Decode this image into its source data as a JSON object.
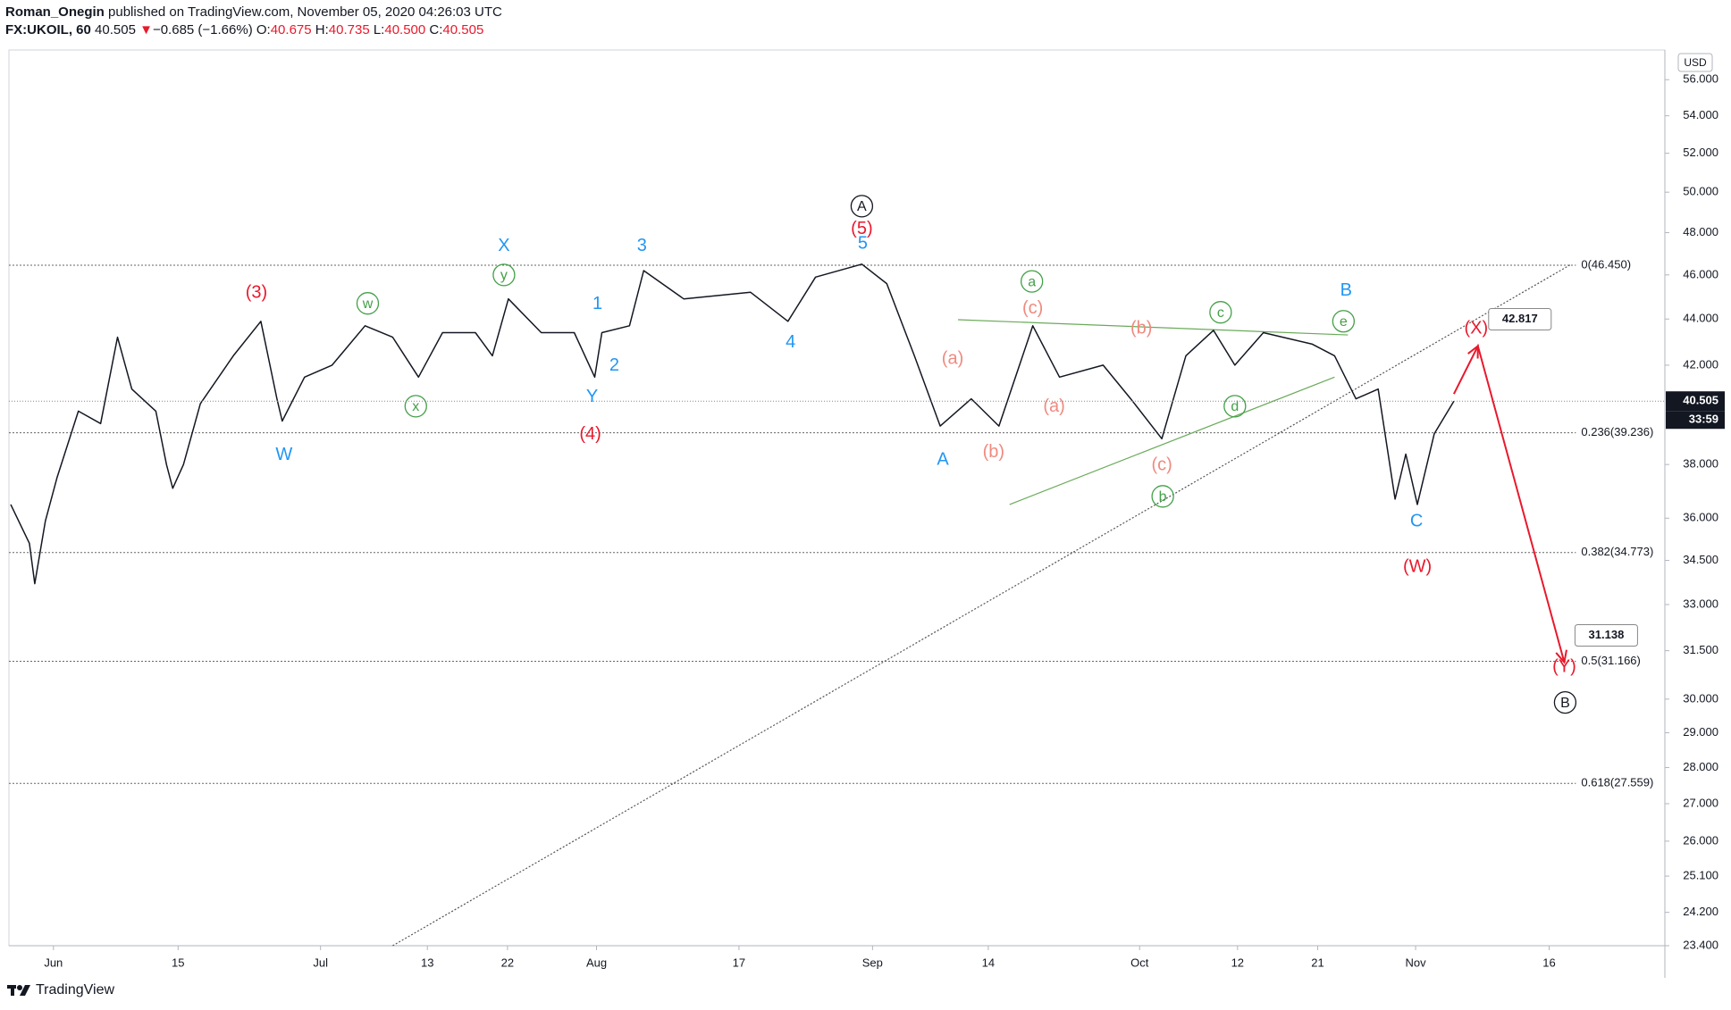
{
  "header": {
    "author": "Roman_Onegin",
    "published": "published on TradingView.com, November 05, 2020 04:26:03 UTC",
    "symbol": "FX:UKOIL, 60",
    "last": "40.505",
    "arrow": "▼",
    "change": "−0.685 (−1.66%)",
    "o_label": "O:",
    "o": "40.675",
    "h_label": "H:",
    "h": "40.735",
    "l_label": "L:",
    "l": "40.500",
    "c_label": "C:",
    "c": "40.505"
  },
  "footer": {
    "brand": "TradingView"
  },
  "chart_data": {
    "type": "line",
    "currency": "USD",
    "log_scale": true,
    "color": "#131722",
    "x": [
      -4.8,
      -2.7,
      -2.1,
      -0.9,
      0.4,
      2.8,
      5.3,
      7.2,
      8.8,
      11.5,
      12.7,
      13.4,
      14.6,
      16.5,
      20.2,
      23.3,
      25.1,
      25.7,
      28.2,
      31.3,
      35.0,
      38.1,
      41.0,
      43.7,
      47.4,
      49.3,
      51.1,
      54.8,
      58.5,
      60.8,
      61.6,
      64.7,
      66.3,
      70.8,
      78.3,
      82.5,
      85.6,
      90.8,
      93.6,
      96.7,
      99.6,
      103.1,
      106.2,
      110.0,
      113.0,
      117.9,
      121.0,
      124.5,
      127.2,
      130.3,
      132.7,
      135.9,
      141.4,
      143.9,
      146.3,
      148.8,
      150.7,
      151.9,
      153.2,
      155.1,
      157.3
    ],
    "values": [
      36.5,
      35.1,
      33.7,
      35.9,
      37.5,
      40.1,
      39.6,
      43.2,
      41.0,
      40.1,
      38.0,
      37.1,
      38.0,
      40.4,
      42.4,
      43.9,
      40.6,
      39.7,
      41.5,
      42.0,
      43.7,
      43.2,
      41.5,
      43.4,
      43.4,
      42.4,
      44.9,
      43.4,
      43.4,
      41.5,
      43.4,
      43.7,
      46.2,
      44.9,
      45.2,
      43.9,
      45.9,
      46.5,
      45.6,
      42.4,
      39.5,
      40.6,
      39.5,
      43.7,
      41.5,
      42.0,
      40.6,
      39.0,
      42.4,
      43.5,
      42.0,
      43.4,
      42.9,
      42.4,
      40.6,
      41.0,
      36.7,
      38.4,
      36.5,
      39.2,
      40.505
    ],
    "xlim": [
      -5,
      181
    ],
    "ylim": [
      23.4,
      57.7
    ],
    "xticks": [
      {
        "value": 0,
        "label": "Jun"
      },
      {
        "value": 14,
        "label": "15"
      },
      {
        "value": 30,
        "label": "Jul"
      },
      {
        "value": 42,
        "label": "13"
      },
      {
        "value": 51,
        "label": "22"
      },
      {
        "value": 61,
        "label": "Aug"
      },
      {
        "value": 77,
        "label": "17"
      },
      {
        "value": 92,
        "label": "Sep"
      },
      {
        "value": 105,
        "label": "14"
      },
      {
        "value": 122,
        "label": "Oct"
      },
      {
        "value": 133,
        "label": "12"
      },
      {
        "value": 142,
        "label": "21"
      },
      {
        "value": 153,
        "label": "Nov"
      },
      {
        "value": 168,
        "label": "16"
      }
    ],
    "yticks": [
      {
        "value": 56,
        "label": "56.000"
      },
      {
        "value": 54,
        "label": "54.000"
      },
      {
        "value": 52,
        "label": "52.000"
      },
      {
        "value": 50,
        "label": "50.000"
      },
      {
        "value": 48,
        "label": "48.000"
      },
      {
        "value": 46,
        "label": "46.000"
      },
      {
        "value": 44,
        "label": "44.000"
      },
      {
        "value": 42,
        "label": "42.000"
      },
      {
        "value": 38,
        "label": "38.000"
      },
      {
        "value": 36,
        "label": "36.000"
      },
      {
        "value": 34.5,
        "label": "34.500"
      },
      {
        "value": 33,
        "label": "33.000"
      },
      {
        "value": 31.5,
        "label": "31.500"
      },
      {
        "value": 30,
        "label": "30.000"
      },
      {
        "value": 29,
        "label": "29.000"
      },
      {
        "value": 28,
        "label": "28.000"
      },
      {
        "value": 27,
        "label": "27.000"
      },
      {
        "value": 26,
        "label": "26.000"
      },
      {
        "value": 25.1,
        "label": "25.100"
      },
      {
        "value": 24.2,
        "label": "24.200"
      },
      {
        "value": 23.4,
        "label": "23.400"
      }
    ],
    "last_price": 40.505,
    "countdown": "33:59",
    "fib_levels": [
      {
        "value": 46.45,
        "label": "0(46.450)"
      },
      {
        "value": 39.236,
        "label": "0.236(39.236)"
      },
      {
        "value": 34.773,
        "label": "0.382(34.773)"
      },
      {
        "value": 31.166,
        "label": "0.5(31.166)"
      },
      {
        "value": 27.559,
        "label": "0.618(27.559)"
      }
    ],
    "trendlines": [
      {
        "x": [
          38.1,
          170.5
        ],
        "values": [
          23.4,
          46.5
        ],
        "color": "#555555",
        "dashed": true
      },
      {
        "x": [
          101.6,
          145.4
        ],
        "values": [
          43.97,
          43.3
        ],
        "color": "#6aaa5a",
        "dashed": false
      },
      {
        "x": [
          107.4,
          143.9
        ],
        "values": [
          36.5,
          41.5
        ],
        "color": "#6aaa5a",
        "dashed": false
      }
    ],
    "projection": {
      "x": [
        157.3,
        160.0,
        169.7
      ],
      "values": [
        40.8,
        42.817,
        31.138
      ],
      "color": "#e8192c"
    },
    "annotations": [
      {
        "text": "(3)",
        "x": 22.8,
        "y": 45.2,
        "color": "#e8192c",
        "circled": false
      },
      {
        "text": "W",
        "x": 25.9,
        "y": 38.4,
        "color": "#2196f3",
        "circled": false
      },
      {
        "text": "w",
        "x": 35.3,
        "y": 44.7,
        "color": "#43a047",
        "circled": true
      },
      {
        "text": "x",
        "x": 40.7,
        "y": 40.3,
        "color": "#43a047",
        "circled": true
      },
      {
        "text": "X",
        "x": 50.6,
        "y": 47.4,
        "color": "#2196f3",
        "circled": false
      },
      {
        "text": "y",
        "x": 50.6,
        "y": 46.0,
        "color": "#43a047",
        "circled": true
      },
      {
        "text": "1",
        "x": 61.1,
        "y": 44.7,
        "color": "#2196f3",
        "circled": false
      },
      {
        "text": "2",
        "x": 63.0,
        "y": 42.0,
        "color": "#2196f3",
        "circled": false
      },
      {
        "text": "Y",
        "x": 60.5,
        "y": 40.7,
        "color": "#2196f3",
        "circled": false
      },
      {
        "text": "(4)",
        "x": 60.3,
        "y": 39.2,
        "color": "#e8192c",
        "circled": false
      },
      {
        "text": "3",
        "x": 66.1,
        "y": 47.4,
        "color": "#2196f3",
        "circled": false
      },
      {
        "text": "4",
        "x": 82.8,
        "y": 43.0,
        "color": "#2196f3",
        "circled": false
      },
      {
        "text": "A",
        "x": 90.8,
        "y": 49.3,
        "color": "#131722",
        "circled": true
      },
      {
        "text": "(5)",
        "x": 90.8,
        "y": 48.2,
        "color": "#e8192c",
        "circled": false
      },
      {
        "text": "5",
        "x": 90.9,
        "y": 47.5,
        "color": "#2196f3",
        "circled": false
      },
      {
        "text": "(a)",
        "x": 101.0,
        "y": 42.3,
        "color": "#ef8a80",
        "circled": false
      },
      {
        "text": "A",
        "x": 99.9,
        "y": 38.2,
        "color": "#2196f3",
        "circled": false
      },
      {
        "text": "(b)",
        "x": 105.6,
        "y": 38.5,
        "color": "#ef8a80",
        "circled": false
      },
      {
        "text": "a",
        "x": 109.9,
        "y": 45.7,
        "color": "#43a047",
        "circled": true
      },
      {
        "text": "(c)",
        "x": 110.0,
        "y": 44.5,
        "color": "#ef8a80",
        "circled": false
      },
      {
        "text": "(a)",
        "x": 112.4,
        "y": 40.3,
        "color": "#ef8a80",
        "circled": false
      },
      {
        "text": "(b)",
        "x": 122.2,
        "y": 43.6,
        "color": "#ef8a80",
        "circled": false
      },
      {
        "text": "(c)",
        "x": 124.5,
        "y": 38.0,
        "color": "#ef8a80",
        "circled": false
      },
      {
        "text": "b",
        "x": 124.6,
        "y": 36.8,
        "color": "#43a047",
        "circled": true
      },
      {
        "text": "c",
        "x": 131.1,
        "y": 44.3,
        "color": "#43a047",
        "circled": true
      },
      {
        "text": "d",
        "x": 132.7,
        "y": 40.3,
        "color": "#43a047",
        "circled": true
      },
      {
        "text": "B",
        "x": 145.2,
        "y": 45.3,
        "color": "#2196f3",
        "circled": false
      },
      {
        "text": "e",
        "x": 144.9,
        "y": 43.9,
        "color": "#43a047",
        "circled": true
      },
      {
        "text": "C",
        "x": 153.1,
        "y": 35.9,
        "color": "#2196f3",
        "circled": false
      },
      {
        "text": "(W)",
        "x": 153.2,
        "y": 34.3,
        "color": "#e8192c",
        "circled": false
      },
      {
        "text": "(X)",
        "x": 159.8,
        "y": 43.6,
        "color": "#e8192c",
        "circled": false
      },
      {
        "text": "(Y)",
        "x": 169.7,
        "y": 31.0,
        "color": "#e8192c",
        "circled": false
      },
      {
        "text": "B",
        "x": 169.8,
        "y": 29.9,
        "color": "#131722",
        "circled": true
      }
    ]
  }
}
